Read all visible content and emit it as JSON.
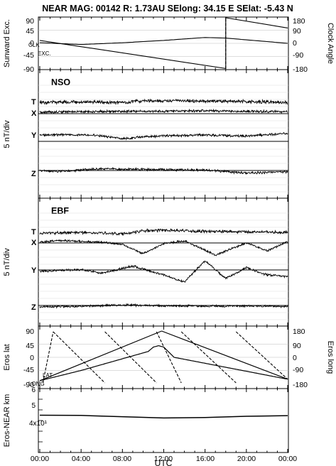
{
  "header": {
    "title": "NEAR MAG: 00142  R: 1.73AU  SElong:   34.15 E  SElat:   -5.43 N"
  },
  "x_axis": {
    "label": "UTC",
    "ticks": [
      "00:00",
      "04:00",
      "08:00",
      "12:00",
      "16:00",
      "20:00",
      "00:00"
    ],
    "range_hours": [
      0,
      24
    ]
  },
  "chart_data": [
    {
      "id": "panel1",
      "type": "line",
      "ylabel_left": "Sunward Exc.",
      "ylabel_right": "Clock Angle",
      "left_ticks": [
        "90",
        "45",
        "0",
        "-45",
        "-90"
      ],
      "right_ticks": [
        "180",
        "90",
        "0",
        "-90",
        "-180"
      ],
      "ylim_left": [
        -90,
        90
      ],
      "ylim_right": [
        -180,
        180
      ],
      "annotations": [
        "CLK",
        "EXC."
      ],
      "series": [
        {
          "name": "CLK",
          "x": [
            0,
            18.0,
            18.0,
            24
          ],
          "y": [
            20,
            -172,
            175,
            105
          ]
        },
        {
          "name": "EXC.",
          "x": [
            0,
            4,
            8,
            12,
            16,
            18,
            24
          ],
          "y": [
            2,
            -4,
            2,
            10,
            20,
            18,
            0
          ]
        }
      ]
    },
    {
      "id": "panel2",
      "type": "line",
      "title": "NSO",
      "ylabel": "5 nT/div",
      "components": [
        "T",
        "X",
        "Y",
        "Z"
      ],
      "series": [
        {
          "name": "T",
          "x": [
            0,
            4,
            8,
            10,
            12,
            16,
            20,
            24
          ],
          "y": [
            2.0,
            2.1,
            1.9,
            2.5,
            2.6,
            2.4,
            2.3,
            2.0
          ]
        },
        {
          "name": "X",
          "x": [
            0,
            4,
            8,
            12,
            16,
            20,
            24
          ],
          "y": [
            0.0,
            0.2,
            0.3,
            0.4,
            0.5,
            0.3,
            0.2
          ]
        },
        {
          "name": "Y",
          "x": [
            0,
            3,
            6,
            8,
            12,
            16,
            20,
            24
          ],
          "y": [
            0.0,
            0.1,
            -0.2,
            -1.0,
            -0.2,
            0.0,
            -0.3,
            0.5
          ]
        },
        {
          "name": "Z",
          "x": [
            0,
            2,
            4,
            6,
            8,
            12,
            16,
            20,
            24
          ],
          "y": [
            0.0,
            -0.2,
            0.1,
            0.4,
            0.3,
            0.2,
            0.1,
            -0.6,
            -0.3
          ]
        }
      ]
    },
    {
      "id": "panel3",
      "type": "line",
      "title": "EBF",
      "ylabel": "5 nT/div",
      "components": [
        "T",
        "X",
        "Y",
        "Z"
      ],
      "series": [
        {
          "name": "T",
          "x": [
            0,
            4,
            8,
            10,
            12,
            16,
            20,
            24
          ],
          "y": [
            2.0,
            2.2,
            1.7,
            2.8,
            3.0,
            2.6,
            2.4,
            2.2
          ]
        },
        {
          "name": "X",
          "x": [
            0,
            2,
            6,
            8,
            10,
            12,
            14,
            17,
            20,
            22,
            24
          ],
          "y": [
            0.0,
            0.6,
            0.0,
            -0.8,
            -4.0,
            -0.5,
            0.5,
            -4.5,
            -0.3,
            -3.0,
            0.2
          ]
        },
        {
          "name": "Y",
          "x": [
            0,
            4,
            6,
            9,
            12,
            14,
            16,
            18,
            20,
            22,
            24
          ],
          "y": [
            0.0,
            0.5,
            -0.5,
            1.5,
            -1.0,
            -3.0,
            3.0,
            -2.0,
            1.0,
            -1.0,
            -1.5
          ]
        },
        {
          "name": "Z",
          "x": [
            0,
            4,
            8,
            12,
            16,
            20,
            24
          ],
          "y": [
            0.0,
            0.3,
            0.9,
            0.5,
            0.4,
            0.4,
            0.2
          ]
        }
      ]
    },
    {
      "id": "panel4",
      "type": "line",
      "ylabel_left": "Eros lat",
      "ylabel_right": "Eros long",
      "left_ticks": [
        "90",
        "45",
        "0",
        "-45",
        "-90"
      ],
      "right_ticks": [
        "180",
        "90",
        "0",
        "-90",
        "-180"
      ],
      "ylim_left": [
        -90,
        90
      ],
      "ylim_right": [
        -180,
        180
      ],
      "annotations": [
        "LAT",
        "LONG"
      ],
      "series": [
        {
          "name": "LAT",
          "x": [
            0,
            4,
            8,
            10.5,
            11,
            11.5,
            12,
            13.0,
            24
          ],
          "y": [
            -80,
            -45,
            -5,
            20,
            35,
            40,
            35,
            0,
            -75
          ]
        },
        {
          "name": "LONG",
          "x": [
            0.3,
            1.3,
            1.3,
            6.3,
            6.3,
            11.3,
            11.3,
            13.7,
            13.7,
            19.0,
            19.0,
            24
          ],
          "y": [
            -175,
            175,
            175,
            -175,
            175,
            -175,
            175,
            -175,
            175,
            -175,
            175,
            -150
          ]
        }
      ]
    },
    {
      "id": "panel5",
      "type": "line",
      "ylabel": "Eros-NEAR km",
      "ytick_labels": [
        "6",
        "5",
        "4x10¹"
      ],
      "ylim": [
        35,
        65
      ],
      "series": [
        {
          "name": "range",
          "x": [
            0,
            4,
            8,
            12,
            16,
            20,
            24
          ],
          "y": [
            52.5,
            52.4,
            51.8,
            51.2,
            51.4,
            52.0,
            52.3
          ]
        }
      ]
    }
  ]
}
